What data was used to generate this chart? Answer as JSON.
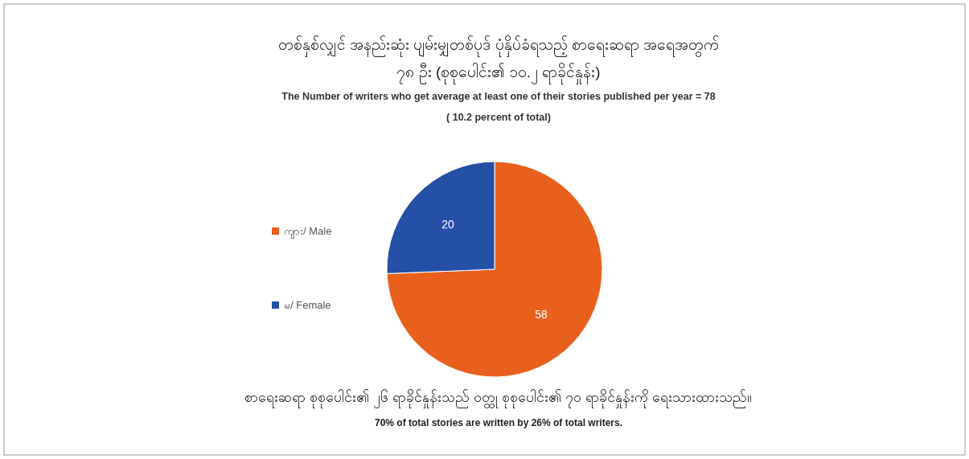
{
  "chart_data": {
    "type": "pie",
    "title": "တစ်နှစ်လျှင် အနည်းဆုံး ပျမ်းမျှတစ်ပုဒ် ပုံနှိပ်ခံရသည့် စာရေးဆရာ အရေအတွက်\n၇၈ ဦး (စုစုပေါင်း၏ ၁၀.၂ ရာခိုင်နှုန်း)",
    "subtitle": "The Number of writers who get average at least one of their stories published per year = 78\n( 10.2 percent of total)",
    "categories": [
      "ကျား/ Male",
      "မ/ Female"
    ],
    "values": [
      58,
      20
    ],
    "colors": [
      "#e8601c",
      "#2450a6"
    ],
    "data_labels": true,
    "legend": "left",
    "annotations": [
      "စာရေးဆရာ စုစုပေါင်း၏ ၂၆ ရာခိုင်နှုန်းသည် ဝတ္ထု စုစုပေါင်း၏ ၇၀ ရာခိုင်နှုန်းကို ရေးသားထားသည်။",
      "70% of total stories are written by 26% of total writers."
    ]
  }
}
